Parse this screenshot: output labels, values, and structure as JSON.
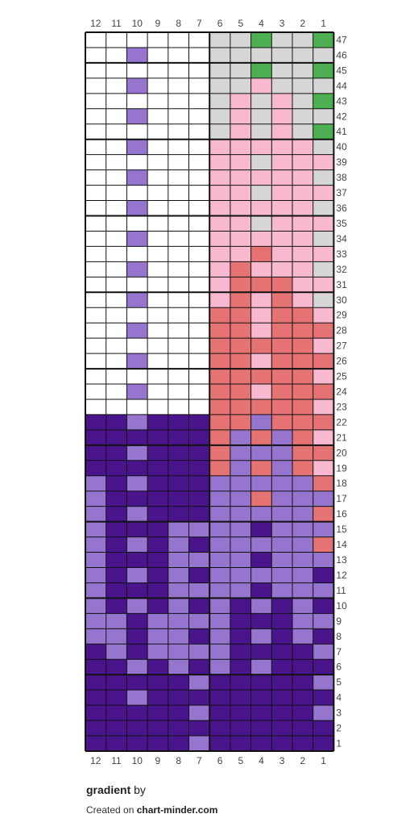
{
  "chart_data": {
    "type": "heatmap",
    "columns": [
      12,
      11,
      10,
      9,
      8,
      7,
      6,
      5,
      4,
      3,
      2,
      1
    ],
    "rows": [
      47,
      46,
      45,
      44,
      43,
      42,
      41,
      40,
      39,
      38,
      37,
      36,
      35,
      34,
      33,
      32,
      31,
      30,
      29,
      28,
      27,
      26,
      25,
      24,
      23,
      22,
      21,
      20,
      19,
      18,
      17,
      16,
      15,
      14,
      13,
      12,
      11,
      10,
      9,
      8,
      7,
      6,
      5,
      4,
      3,
      2,
      1
    ],
    "palette": {
      "W": "#ffffff",
      "G": "#d6d6d6",
      "N": "#4caf50",
      "P": "#f8b8d0",
      "R": "#e57373",
      "L": "#9575cd",
      "D": "#4a148c"
    },
    "grid": [
      "WWWWWWGGNGGN",
      "WWLWWWGGGGGG",
      "WWWWWWGGNGGN",
      "WWLWWWGGPGGG",
      "WWWWWWGPGPGN",
      "WWLWWWGPGPGG",
      "WWWWWWGPGPGN",
      "WWLWWWPPPPPG",
      "WWWWWWPPGPPP",
      "WWLWWWPPPPPG",
      "WWWWWWPPGPPP",
      "WWLWWWPPPPPG",
      "WWWWWWPPGPPP",
      "WWLWWWPPPPPG",
      "WWWWWWPPRPPP",
      "WWLWWWPRPPPG",
      "WWWWWWPRRRPP",
      "WWLWWWPRPRPG",
      "WWWWWWRRPRRP",
      "WWLWWWRRPRRR",
      "WWWWWWRRRRRP",
      "WWLWWWRRPRRR",
      "WWWWWWRRRRRP",
      "WWLWWWRRPRRR",
      "WWWWWWRRRRRP",
      "DDLDDDRRLRRR",
      "DDDDDDRLRLRP",
      "DDLDDDRLLLRR",
      "DDDDDDRLRLRP",
      "LDLDDDLLLLLR",
      "LDDDDDLLRLLL",
      "LDLDDDLLLLLR",
      "LDDDLLLLDLLL",
      "LDLDLDLLLLLR",
      "LDDDLLLLDLLL",
      "LDLDLDLLLLLD",
      "LDDDLLLLDLLL",
      "LDLDLDLDLDLD",
      "LLDLLLLDDDLL",
      "LLDLLDLDLDLD",
      "DLDLLLLDDDDL",
      "DDLDLDLDLDDD",
      "DDDDDLDDDDDL",
      "DDLDDDDDDDDD",
      "DDDDDLDDDDDL",
      "DDDDDDDDDDDD",
      "DDDDDLDDDDDD"
    ]
  },
  "footer": {
    "title": "gradient",
    "by": " by",
    "created_prefix": "Created on ",
    "site": "chart-minder.com"
  }
}
